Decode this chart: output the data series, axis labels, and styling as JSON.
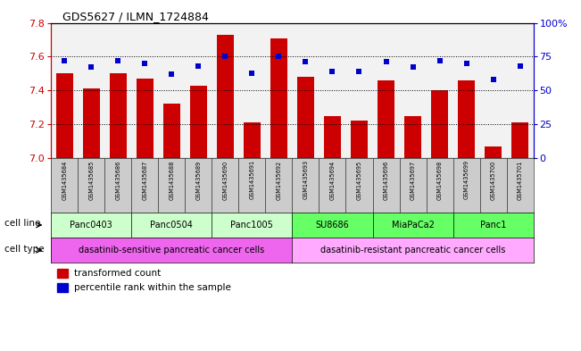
{
  "title": "GDS5627 / ILMN_1724884",
  "samples": [
    "GSM1435684",
    "GSM1435685",
    "GSM1435686",
    "GSM1435687",
    "GSM1435688",
    "GSM1435689",
    "GSM1435690",
    "GSM1435691",
    "GSM1435692",
    "GSM1435693",
    "GSM1435694",
    "GSM1435695",
    "GSM1435696",
    "GSM1435697",
    "GSM1435698",
    "GSM1435699",
    "GSM1435700",
    "GSM1435701"
  ],
  "bar_values": [
    7.5,
    7.41,
    7.5,
    7.47,
    7.32,
    7.43,
    7.73,
    7.21,
    7.71,
    7.48,
    7.25,
    7.22,
    7.46,
    7.25,
    7.4,
    7.46,
    7.07,
    7.21
  ],
  "percentile_values": [
    72,
    67,
    72,
    70,
    62,
    68,
    75,
    63,
    75,
    71,
    64,
    64,
    71,
    67,
    72,
    70,
    58,
    68
  ],
  "ylim_left": [
    7.0,
    7.8
  ],
  "ylim_right": [
    0,
    100
  ],
  "yticks_left": [
    7.0,
    7.2,
    7.4,
    7.6,
    7.8
  ],
  "yticks_right": [
    0,
    25,
    50,
    75,
    100
  ],
  "ytick_labels_right": [
    "0",
    "25",
    "50",
    "75",
    "100%"
  ],
  "bar_color": "#cc0000",
  "dot_color": "#0000cc",
  "cell_lines": [
    {
      "label": "Panc0403",
      "start": 0,
      "end": 2,
      "color": "#ccffcc"
    },
    {
      "label": "Panc0504",
      "start": 3,
      "end": 5,
      "color": "#ccffcc"
    },
    {
      "label": "Panc1005",
      "start": 6,
      "end": 8,
      "color": "#ccffcc"
    },
    {
      "label": "SU8686",
      "start": 9,
      "end": 11,
      "color": "#66ff66"
    },
    {
      "label": "MiaPaCa2",
      "start": 12,
      "end": 14,
      "color": "#66ff66"
    },
    {
      "label": "Panc1",
      "start": 15,
      "end": 17,
      "color": "#66ff66"
    }
  ],
  "cell_types": [
    {
      "label": "dasatinib-sensitive pancreatic cancer cells",
      "start": 0,
      "end": 8,
      "color": "#ee66ee"
    },
    {
      "label": "dasatinib-resistant pancreatic cancer cells",
      "start": 9,
      "end": 17,
      "color": "#ffaaff"
    }
  ],
  "legend_bar_label": "transformed count",
  "legend_dot_label": "percentile rank within the sample",
  "cell_line_row_label": "cell line",
  "cell_type_row_label": "cell type",
  "bg_color": "#ffffff",
  "axis_left_color": "#cc0000",
  "axis_right_color": "#0000cc",
  "xtick_bg_color": "#cccccc"
}
